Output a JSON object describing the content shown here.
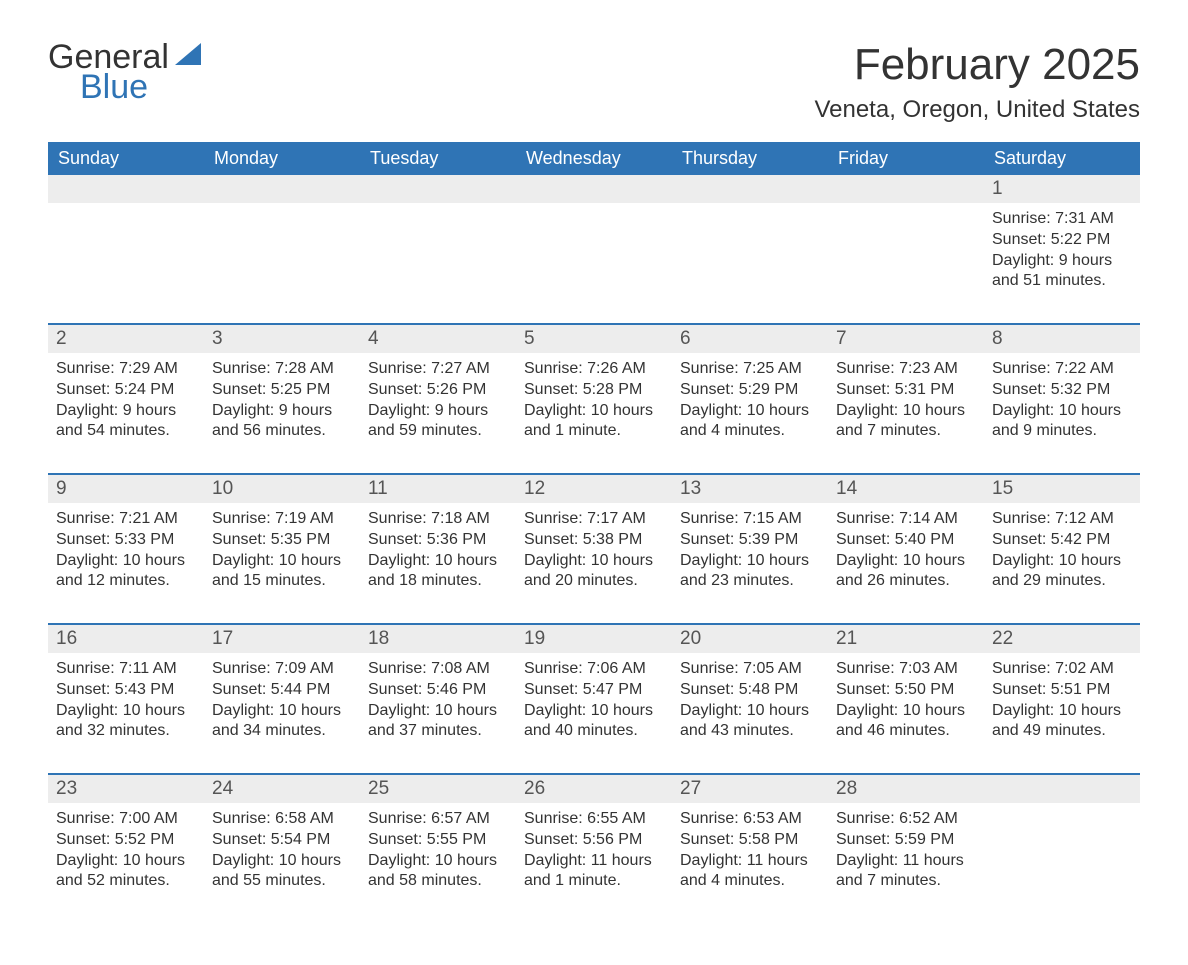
{
  "logo": {
    "text_general": "General",
    "text_blue": "Blue",
    "sail_color": "#2f74b5"
  },
  "title": "February 2025",
  "location": "Veneta, Oregon, United States",
  "colors": {
    "header_bg": "#2f74b5",
    "header_text": "#ffffff",
    "band_bg": "#ededed",
    "rule": "#2f74b5",
    "body_text": "#333333"
  },
  "days_of_week": [
    "Sunday",
    "Monday",
    "Tuesday",
    "Wednesday",
    "Thursday",
    "Friday",
    "Saturday"
  ],
  "weeks": [
    [
      null,
      null,
      null,
      null,
      null,
      null,
      {
        "n": "1",
        "sunrise": "Sunrise: 7:31 AM",
        "sunset": "Sunset: 5:22 PM",
        "day1": "Daylight: 9 hours",
        "day2": "and 51 minutes."
      }
    ],
    [
      {
        "n": "2",
        "sunrise": "Sunrise: 7:29 AM",
        "sunset": "Sunset: 5:24 PM",
        "day1": "Daylight: 9 hours",
        "day2": "and 54 minutes."
      },
      {
        "n": "3",
        "sunrise": "Sunrise: 7:28 AM",
        "sunset": "Sunset: 5:25 PM",
        "day1": "Daylight: 9 hours",
        "day2": "and 56 minutes."
      },
      {
        "n": "4",
        "sunrise": "Sunrise: 7:27 AM",
        "sunset": "Sunset: 5:26 PM",
        "day1": "Daylight: 9 hours",
        "day2": "and 59 minutes."
      },
      {
        "n": "5",
        "sunrise": "Sunrise: 7:26 AM",
        "sunset": "Sunset: 5:28 PM",
        "day1": "Daylight: 10 hours",
        "day2": "and 1 minute."
      },
      {
        "n": "6",
        "sunrise": "Sunrise: 7:25 AM",
        "sunset": "Sunset: 5:29 PM",
        "day1": "Daylight: 10 hours",
        "day2": "and 4 minutes."
      },
      {
        "n": "7",
        "sunrise": "Sunrise: 7:23 AM",
        "sunset": "Sunset: 5:31 PM",
        "day1": "Daylight: 10 hours",
        "day2": "and 7 minutes."
      },
      {
        "n": "8",
        "sunrise": "Sunrise: 7:22 AM",
        "sunset": "Sunset: 5:32 PM",
        "day1": "Daylight: 10 hours",
        "day2": "and 9 minutes."
      }
    ],
    [
      {
        "n": "9",
        "sunrise": "Sunrise: 7:21 AM",
        "sunset": "Sunset: 5:33 PM",
        "day1": "Daylight: 10 hours",
        "day2": "and 12 minutes."
      },
      {
        "n": "10",
        "sunrise": "Sunrise: 7:19 AM",
        "sunset": "Sunset: 5:35 PM",
        "day1": "Daylight: 10 hours",
        "day2": "and 15 minutes."
      },
      {
        "n": "11",
        "sunrise": "Sunrise: 7:18 AM",
        "sunset": "Sunset: 5:36 PM",
        "day1": "Daylight: 10 hours",
        "day2": "and 18 minutes."
      },
      {
        "n": "12",
        "sunrise": "Sunrise: 7:17 AM",
        "sunset": "Sunset: 5:38 PM",
        "day1": "Daylight: 10 hours",
        "day2": "and 20 minutes."
      },
      {
        "n": "13",
        "sunrise": "Sunrise: 7:15 AM",
        "sunset": "Sunset: 5:39 PM",
        "day1": "Daylight: 10 hours",
        "day2": "and 23 minutes."
      },
      {
        "n": "14",
        "sunrise": "Sunrise: 7:14 AM",
        "sunset": "Sunset: 5:40 PM",
        "day1": "Daylight: 10 hours",
        "day2": "and 26 minutes."
      },
      {
        "n": "15",
        "sunrise": "Sunrise: 7:12 AM",
        "sunset": "Sunset: 5:42 PM",
        "day1": "Daylight: 10 hours",
        "day2": "and 29 minutes."
      }
    ],
    [
      {
        "n": "16",
        "sunrise": "Sunrise: 7:11 AM",
        "sunset": "Sunset: 5:43 PM",
        "day1": "Daylight: 10 hours",
        "day2": "and 32 minutes."
      },
      {
        "n": "17",
        "sunrise": "Sunrise: 7:09 AM",
        "sunset": "Sunset: 5:44 PM",
        "day1": "Daylight: 10 hours",
        "day2": "and 34 minutes."
      },
      {
        "n": "18",
        "sunrise": "Sunrise: 7:08 AM",
        "sunset": "Sunset: 5:46 PM",
        "day1": "Daylight: 10 hours",
        "day2": "and 37 minutes."
      },
      {
        "n": "19",
        "sunrise": "Sunrise: 7:06 AM",
        "sunset": "Sunset: 5:47 PM",
        "day1": "Daylight: 10 hours",
        "day2": "and 40 minutes."
      },
      {
        "n": "20",
        "sunrise": "Sunrise: 7:05 AM",
        "sunset": "Sunset: 5:48 PM",
        "day1": "Daylight: 10 hours",
        "day2": "and 43 minutes."
      },
      {
        "n": "21",
        "sunrise": "Sunrise: 7:03 AM",
        "sunset": "Sunset: 5:50 PM",
        "day1": "Daylight: 10 hours",
        "day2": "and 46 minutes."
      },
      {
        "n": "22",
        "sunrise": "Sunrise: 7:02 AM",
        "sunset": "Sunset: 5:51 PM",
        "day1": "Daylight: 10 hours",
        "day2": "and 49 minutes."
      }
    ],
    [
      {
        "n": "23",
        "sunrise": "Sunrise: 7:00 AM",
        "sunset": "Sunset: 5:52 PM",
        "day1": "Daylight: 10 hours",
        "day2": "and 52 minutes."
      },
      {
        "n": "24",
        "sunrise": "Sunrise: 6:58 AM",
        "sunset": "Sunset: 5:54 PM",
        "day1": "Daylight: 10 hours",
        "day2": "and 55 minutes."
      },
      {
        "n": "25",
        "sunrise": "Sunrise: 6:57 AM",
        "sunset": "Sunset: 5:55 PM",
        "day1": "Daylight: 10 hours",
        "day2": "and 58 minutes."
      },
      {
        "n": "26",
        "sunrise": "Sunrise: 6:55 AM",
        "sunset": "Sunset: 5:56 PM",
        "day1": "Daylight: 11 hours",
        "day2": "and 1 minute."
      },
      {
        "n": "27",
        "sunrise": "Sunrise: 6:53 AM",
        "sunset": "Sunset: 5:58 PM",
        "day1": "Daylight: 11 hours",
        "day2": "and 4 minutes."
      },
      {
        "n": "28",
        "sunrise": "Sunrise: 6:52 AM",
        "sunset": "Sunset: 5:59 PM",
        "day1": "Daylight: 11 hours",
        "day2": "and 7 minutes."
      },
      null
    ]
  ]
}
